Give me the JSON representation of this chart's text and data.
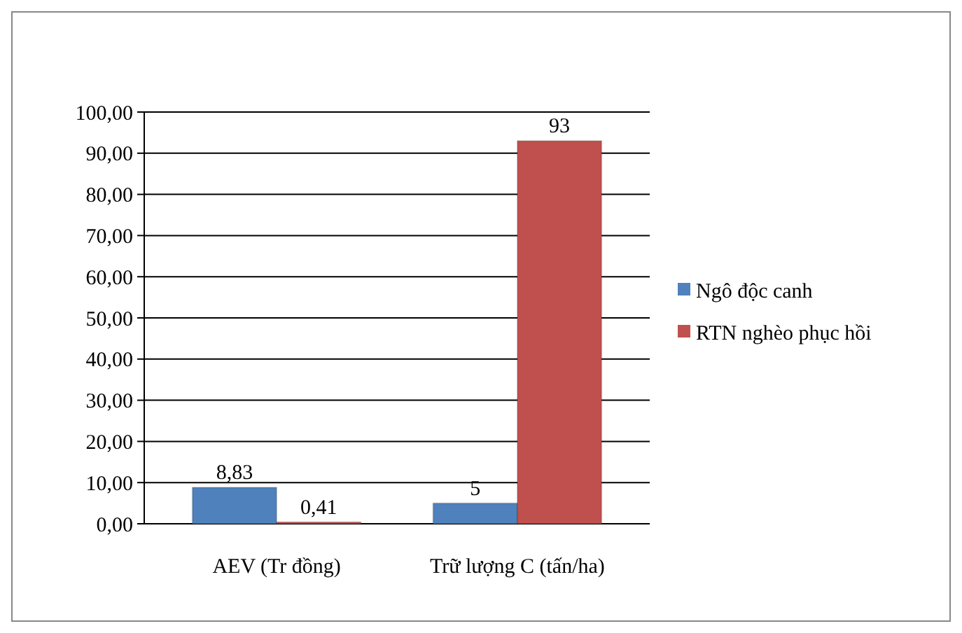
{
  "chart_data": {
    "type": "bar",
    "categories": [
      "AEV (Tr đồng)",
      "Trữ lượng C (tấn/ha)"
    ],
    "series": [
      {
        "name": "Ngô độc canh",
        "color": "#4f81bd",
        "values": [
          8.83,
          5
        ],
        "value_labels": [
          "8,83",
          "5"
        ]
      },
      {
        "name": "RTN nghèo phục hồi",
        "color": "#c0504d",
        "values": [
          0.41,
          93
        ],
        "value_labels": [
          "0,41",
          "93"
        ]
      }
    ],
    "ylim": [
      0,
      100
    ],
    "yticks": [
      {
        "value": 0,
        "label": "0,00"
      },
      {
        "value": 10,
        "label": "10,00"
      },
      {
        "value": 20,
        "label": "20,00"
      },
      {
        "value": 30,
        "label": "30,00"
      },
      {
        "value": 40,
        "label": "40,00"
      },
      {
        "value": 50,
        "label": "50,00"
      },
      {
        "value": 60,
        "label": "60,00"
      },
      {
        "value": 70,
        "label": "70,00"
      },
      {
        "value": 80,
        "label": "80,00"
      },
      {
        "value": 90,
        "label": "90,00"
      },
      {
        "value": 100,
        "label": "100,00"
      }
    ],
    "grid": "y",
    "legend": "right"
  }
}
